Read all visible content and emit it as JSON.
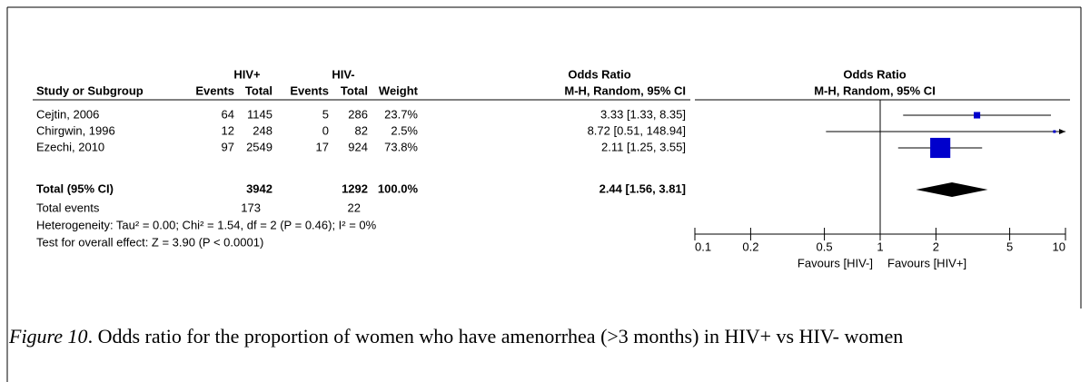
{
  "table": {
    "group_headers": {
      "hiv_pos": "HIV+",
      "hiv_neg": "HIV-",
      "odds_ratio": "Odds Ratio"
    },
    "columns": [
      "Study or Subgroup",
      "Events",
      "Total",
      "Events",
      "Total",
      "Weight",
      "M-H, Random, 95% CI"
    ],
    "rows": [
      [
        "Cejtin, 2006",
        "64",
        "1145",
        "5",
        "286",
        "23.7%",
        "3.33 [1.33, 8.35]"
      ],
      [
        "Chirgwin, 1996",
        "12",
        "248",
        "0",
        "82",
        "2.5%",
        "8.72 [0.51, 148.94]"
      ],
      [
        "Ezechi, 2010",
        "97",
        "2549",
        "17",
        "924",
        "73.8%",
        "2.11 [1.25, 3.55]"
      ]
    ],
    "total_row": {
      "label": "Total (95% CI)",
      "hiv_pos_total": "3942",
      "hiv_neg_total": "1292",
      "weight": "100.0%",
      "ci": "2.44 [1.56, 3.81]"
    },
    "events_row": {
      "label": "Total events",
      "hiv_pos": "173",
      "hiv_neg": "22"
    },
    "heterogeneity": "Heterogeneity: Tau² = 0.00; Chi² = 1.54, df = 2 (P = 0.46); I² = 0%",
    "overall_effect": "Test for overall effect: Z = 3.90 (P < 0.0001)"
  },
  "chart_data": {
    "type": "forest",
    "title": "Odds Ratio",
    "subtitle": "M-H, Random, 95% CI",
    "log_scale": true,
    "xlim": [
      0.1,
      10
    ],
    "xticks": [
      0.1,
      0.2,
      0.5,
      1,
      2,
      5,
      10
    ],
    "xlabel_left": "Favours [HIV-]",
    "xlabel_right": "Favours [HIV+]",
    "estimate": [
      3.33,
      8.72,
      2.11
    ],
    "lower": [
      1.33,
      0.51,
      1.25
    ],
    "upper": [
      8.35,
      148.94,
      3.55
    ],
    "weight": [
      23.7,
      2.5,
      73.8
    ],
    "total": {
      "estimate": 2.44,
      "lower": 1.56,
      "upper": 3.81
    },
    "color": "#0000cc",
    "total_color": "#000000"
  },
  "caption": {
    "label": "Figure 10",
    "text": ". Odds ratio for the proportion of women who have amenorrhea (>3 months) in HIV+ vs HIV- women"
  }
}
